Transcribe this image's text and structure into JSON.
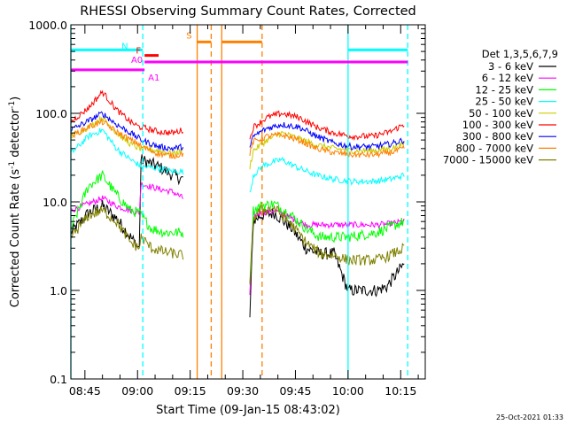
{
  "chart_data": {
    "type": "line",
    "title": "RHESSI Observing Summary Count Rates, Corrected",
    "xlabel": "Start Time (09-Jan-15 08:43:02)",
    "ylabel": "Corrected Count Rate (s",
    "ylabel_sup": "-1",
    "ylabel_tail": " detector",
    "ylabel_end": ")",
    "yscale": "log",
    "ylim": [
      0.1,
      1000
    ],
    "xlim_min": [
      41,
      142
    ],
    "x_unit": "minutes after 08:04",
    "y_ticks": [
      {
        "v": 1000,
        "label": "1000.0"
      },
      {
        "v": 100,
        "label": "100.0"
      },
      {
        "v": 10,
        "label": "10.0"
      },
      {
        "v": 1,
        "label": "1.0"
      },
      {
        "v": 0.1,
        "label": "0.1"
      }
    ],
    "x_ticks": [
      {
        "m": 45,
        "label": "08:45"
      },
      {
        "m": 60,
        "label": "09:00"
      },
      {
        "m": 75,
        "label": "09:15"
      },
      {
        "m": 90,
        "label": "09:30"
      },
      {
        "m": 105,
        "label": "09:45"
      },
      {
        "m": 120,
        "label": "10:00"
      },
      {
        "m": 135,
        "label": "10:15"
      }
    ],
    "legend_title": "Det 1,3,5,6,7,9",
    "series": [
      {
        "name": "3 - 6 keV",
        "color": "#000000",
        "seg1": [
          [
            41,
            4.5
          ],
          [
            46,
            7.5
          ],
          [
            50,
            9
          ],
          [
            54,
            6.5
          ],
          [
            58,
            4
          ],
          [
            60.5,
            3
          ],
          [
            61,
            30
          ],
          [
            66,
            25
          ],
          [
            70,
            20
          ],
          [
            73,
            18
          ]
        ],
        "seg2": [
          [
            92,
            0.5
          ],
          [
            93,
            6
          ],
          [
            95,
            7
          ],
          [
            99,
            7.5
          ],
          [
            104,
            5
          ],
          [
            108,
            3
          ],
          [
            112,
            2.6
          ],
          [
            116,
            2.6
          ],
          [
            120,
            1
          ],
          [
            128,
            1
          ],
          [
            131,
            1.1
          ],
          [
            136,
            2
          ]
        ]
      },
      {
        "name": "6 - 12 keV",
        "color": "#ff00ff",
        "seg1": [
          [
            41,
            8
          ],
          [
            46,
            9.5
          ],
          [
            50,
            11
          ],
          [
            54,
            9
          ],
          [
            58,
            8
          ],
          [
            60.5,
            7.5
          ],
          [
            61,
            16
          ],
          [
            66,
            14
          ],
          [
            70,
            13
          ],
          [
            73,
            11
          ]
        ],
        "seg2": [
          [
            92,
            0.9
          ],
          [
            93,
            7
          ],
          [
            95,
            7.5
          ],
          [
            99,
            8
          ],
          [
            104,
            6.5
          ],
          [
            108,
            5.5
          ],
          [
            112,
            5.5
          ],
          [
            116,
            5.5
          ],
          [
            120,
            5.5
          ],
          [
            128,
            5.5
          ],
          [
            131,
            5.6
          ],
          [
            136,
            6
          ]
        ]
      },
      {
        "name": "12 - 25 keV",
        "color": "#00ff00",
        "seg1": [
          [
            41,
            5
          ],
          [
            46,
            15
          ],
          [
            50,
            20
          ],
          [
            54,
            12
          ],
          [
            58,
            8
          ],
          [
            60.5,
            7.5
          ],
          [
            61,
            7
          ],
          [
            64,
            5
          ],
          [
            68,
            4.5
          ],
          [
            73,
            4.5
          ]
        ],
        "seg2": [
          [
            92,
            1.1
          ],
          [
            93,
            8
          ],
          [
            95,
            9
          ],
          [
            99,
            9.5
          ],
          [
            104,
            7
          ],
          [
            108,
            5
          ],
          [
            112,
            4
          ],
          [
            116,
            4
          ],
          [
            120,
            4
          ],
          [
            128,
            4.5
          ],
          [
            131,
            5
          ],
          [
            136,
            6
          ]
        ]
      },
      {
        "name": "25 - 50 keV",
        "color": "#00ffff",
        "seg1": [
          [
            41,
            35
          ],
          [
            46,
            55
          ],
          [
            50,
            65
          ],
          [
            54,
            40
          ],
          [
            58,
            30
          ],
          [
            60.5,
            26
          ],
          [
            61,
            25
          ],
          [
            66,
            24
          ],
          [
            70,
            22
          ],
          [
            73,
            22
          ]
        ],
        "seg2": [
          [
            92,
            12
          ],
          [
            93,
            20
          ],
          [
            96,
            26
          ],
          [
            101,
            30
          ],
          [
            106,
            24
          ],
          [
            111,
            20
          ],
          [
            116,
            18
          ],
          [
            121,
            17
          ],
          [
            127,
            17
          ],
          [
            132,
            18
          ],
          [
            136,
            20
          ]
        ]
      },
      {
        "name": "50 - 100 keV",
        "color": "#cccc00",
        "seg1": [
          [
            41,
            55
          ],
          [
            46,
            70
          ],
          [
            50,
            90
          ],
          [
            54,
            60
          ],
          [
            58,
            45
          ],
          [
            60.5,
            40
          ],
          [
            61,
            40
          ],
          [
            66,
            38
          ],
          [
            70,
            35
          ],
          [
            73,
            38
          ]
        ],
        "seg2": [
          [
            92,
            25
          ],
          [
            93,
            38
          ],
          [
            97,
            50
          ],
          [
            101,
            60
          ],
          [
            106,
            52
          ],
          [
            111,
            44
          ],
          [
            116,
            40
          ],
          [
            121,
            38
          ],
          [
            127,
            38
          ],
          [
            132,
            40
          ],
          [
            136,
            45
          ]
        ]
      },
      {
        "name": "100 - 300 keV",
        "color": "#ff0000",
        "seg1": [
          [
            41,
            80
          ],
          [
            46,
            115
          ],
          [
            50,
            175
          ],
          [
            54,
            110
          ],
          [
            58,
            80
          ],
          [
            60.5,
            70
          ],
          [
            61,
            70
          ],
          [
            66,
            62
          ],
          [
            70,
            60
          ],
          [
            73,
            65
          ]
        ],
        "seg2": [
          [
            92,
            50
          ],
          [
            93,
            70
          ],
          [
            97,
            90
          ],
          [
            101,
            100
          ],
          [
            106,
            90
          ],
          [
            111,
            70
          ],
          [
            116,
            60
          ],
          [
            121,
            55
          ],
          [
            127,
            55
          ],
          [
            132,
            62
          ],
          [
            136,
            75
          ]
        ]
      },
      {
        "name": "300 - 800 keV",
        "color": "#0000ff",
        "seg1": [
          [
            41,
            65
          ],
          [
            46,
            82
          ],
          [
            50,
            100
          ],
          [
            54,
            75
          ],
          [
            58,
            60
          ],
          [
            60.5,
            52
          ],
          [
            61,
            50
          ],
          [
            66,
            42
          ],
          [
            70,
            40
          ],
          [
            73,
            42
          ]
        ],
        "seg2": [
          [
            92,
            40
          ],
          [
            93,
            55
          ],
          [
            97,
            68
          ],
          [
            101,
            75
          ],
          [
            106,
            70
          ],
          [
            111,
            55
          ],
          [
            116,
            46
          ],
          [
            121,
            42
          ],
          [
            127,
            42
          ],
          [
            132,
            45
          ],
          [
            136,
            50
          ]
        ]
      },
      {
        "name": "800 - 7000 keV",
        "color": "#ff8000",
        "seg1": [
          [
            41,
            55
          ],
          [
            46,
            70
          ],
          [
            50,
            80
          ],
          [
            54,
            62
          ],
          [
            58,
            50
          ],
          [
            60.5,
            45
          ],
          [
            61,
            42
          ],
          [
            66,
            35
          ],
          [
            70,
            33
          ],
          [
            73,
            35
          ]
        ],
        "seg2": [
          [
            92,
            35
          ],
          [
            93,
            48
          ],
          [
            97,
            55
          ],
          [
            101,
            57
          ],
          [
            106,
            50
          ],
          [
            111,
            40
          ],
          [
            116,
            36
          ],
          [
            121,
            34
          ],
          [
            127,
            34
          ],
          [
            132,
            36
          ],
          [
            136,
            40
          ]
        ]
      },
      {
        "name": "7000 - 15000 keV",
        "color": "#808000",
        "seg1": [
          [
            41,
            4
          ],
          [
            46,
            7
          ],
          [
            50,
            8
          ],
          [
            54,
            6
          ],
          [
            58,
            3.5
          ],
          [
            60.5,
            3
          ],
          [
            61,
            4
          ],
          [
            64,
            3
          ],
          [
            68,
            2.7
          ],
          [
            73,
            2.5
          ]
        ],
        "seg2": [
          [
            92,
            1.1
          ],
          [
            93,
            6.5
          ],
          [
            95,
            8
          ],
          [
            99,
            8.5
          ],
          [
            104,
            5.5
          ],
          [
            108,
            3.5
          ],
          [
            112,
            2.6
          ],
          [
            116,
            2.5
          ],
          [
            120,
            2.2
          ],
          [
            128,
            2.2
          ],
          [
            131,
            2.4
          ],
          [
            136,
            3
          ]
        ]
      }
    ],
    "intervals": [
      {
        "label": "N",
        "color": "#00ffff",
        "y": 520,
        "segments": [
          [
            41,
            61.5
          ],
          [
            120,
            137
          ]
        ]
      },
      {
        "label": "S",
        "color": "#ff8000",
        "y": 640,
        "segments": [
          [
            77,
            81
          ],
          [
            84,
            95.5
          ]
        ]
      },
      {
        "label": "F",
        "color": "#ff0000",
        "y": 450,
        "segments": [
          [
            62,
            66
          ]
        ]
      },
      {
        "label": "A0",
        "color": "#ff00ff",
        "y": 380,
        "segments": [
          [
            62,
            137
          ]
        ]
      },
      {
        "label": "A1",
        "color": "#ff00ff",
        "y": 310,
        "segments": [
          [
            41,
            62
          ]
        ]
      }
    ],
    "markers": [
      {
        "m": 41,
        "style": "solid",
        "color": "#00ffff"
      },
      {
        "m": 61.5,
        "style": "dashed",
        "color": "#00ffff"
      },
      {
        "m": 77,
        "style": "solid",
        "color": "#ff8000"
      },
      {
        "m": 81,
        "style": "dashed",
        "color": "#ff8000"
      },
      {
        "m": 84,
        "style": "solid",
        "color": "#ff8000"
      },
      {
        "m": 95.5,
        "style": "dashed",
        "color": "#ff8000"
      },
      {
        "m": 120,
        "style": "solid",
        "color": "#00ffff"
      },
      {
        "m": 137,
        "style": "dashed",
        "color": "#00ffff"
      }
    ]
  },
  "footer": {
    "timestamp": "25-Oct-2021 01:33"
  }
}
